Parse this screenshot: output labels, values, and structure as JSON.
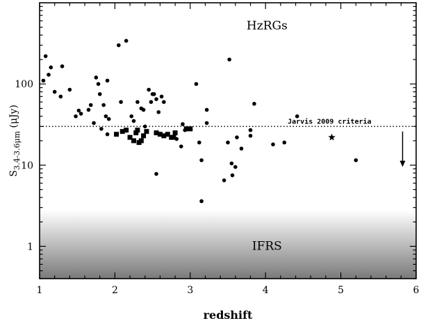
{
  "chart_data": {
    "type": "scatter",
    "title": "",
    "xlabel": "redshift",
    "ylabel": "S",
    "ylabel_sub": "3.4-3.6μm",
    "ylabel_unit": " (μJy)",
    "xlim": [
      1,
      6
    ],
    "ylim": [
      0.4,
      1000
    ],
    "yscale": "log",
    "x_ticks": [
      {
        "value": 1,
        "label": "1"
      },
      {
        "value": 2,
        "label": "2"
      },
      {
        "value": 3,
        "label": "3"
      },
      {
        "value": 4,
        "label": "4"
      },
      {
        "value": 5,
        "label": "5"
      },
      {
        "value": 6,
        "label": "6"
      }
    ],
    "y_ticks": [
      {
        "value": 1,
        "label": "1"
      },
      {
        "value": 10,
        "label": "10"
      },
      {
        "value": 100,
        "label": "100"
      }
    ],
    "annotations": {
      "hzrgs": "HzRGs",
      "ifrs": "IFRS",
      "criteria": "Jarvis 2009 criteria"
    },
    "criteria_flux": 30,
    "ifrs_region_max_flux": 2.8,
    "arrow": {
      "x": 5.82,
      "from": 26,
      "to": 9.5
    },
    "series": [
      {
        "marker": "circle",
        "points": [
          [
            1.05,
            110
          ],
          [
            1.08,
            220
          ],
          [
            1.12,
            130
          ],
          [
            1.15,
            160
          ],
          [
            1.2,
            80
          ],
          [
            1.28,
            70
          ],
          [
            1.3,
            165
          ],
          [
            1.4,
            85
          ],
          [
            1.48,
            40
          ],
          [
            1.52,
            47
          ],
          [
            1.55,
            43
          ],
          [
            1.65,
            48
          ],
          [
            1.68,
            55
          ],
          [
            1.72,
            33
          ],
          [
            1.75,
            120
          ],
          [
            1.78,
            100
          ],
          [
            1.8,
            75
          ],
          [
            1.82,
            28
          ],
          [
            1.85,
            55
          ],
          [
            1.88,
            40
          ],
          [
            1.9,
            24
          ],
          [
            1.9,
            110
          ],
          [
            1.92,
            37
          ],
          [
            2.05,
            300
          ],
          [
            2.08,
            60
          ],
          [
            2.15,
            340
          ],
          [
            2.22,
            40
          ],
          [
            2.25,
            35
          ],
          [
            2.3,
            60
          ],
          [
            2.35,
            50
          ],
          [
            2.38,
            48
          ],
          [
            2.4,
            30
          ],
          [
            2.45,
            85
          ],
          [
            2.48,
            60
          ],
          [
            2.5,
            75
          ],
          [
            2.52,
            75
          ],
          [
            2.55,
            65
          ],
          [
            2.58,
            45
          ],
          [
            2.62,
            70
          ],
          [
            2.65,
            60
          ],
          [
            2.55,
            7.8
          ],
          [
            2.82,
            21
          ],
          [
            2.88,
            17
          ],
          [
            2.9,
            32
          ],
          [
            2.93,
            27
          ],
          [
            3.08,
            100
          ],
          [
            3.12,
            19
          ],
          [
            3.15,
            11.5
          ],
          [
            3.15,
            3.6
          ],
          [
            3.22,
            48
          ],
          [
            3.22,
            33
          ],
          [
            3.45,
            6.5
          ],
          [
            3.5,
            19
          ],
          [
            3.52,
            200
          ],
          [
            3.55,
            10.5
          ],
          [
            3.56,
            7.5
          ],
          [
            3.6,
            9.5
          ],
          [
            3.62,
            22
          ],
          [
            3.68,
            16
          ],
          [
            3.8,
            27
          ],
          [
            3.8,
            23
          ],
          [
            3.85,
            57
          ],
          [
            4.1,
            18
          ],
          [
            4.25,
            19
          ],
          [
            4.42,
            40
          ],
          [
            5.2,
            11.5
          ]
        ]
      },
      {
        "marker": "square",
        "points": [
          [
            2.02,
            24
          ],
          [
            2.1,
            26
          ],
          [
            2.15,
            27
          ],
          [
            2.2,
            22
          ],
          [
            2.25,
            20
          ],
          [
            2.28,
            25
          ],
          [
            2.3,
            27
          ],
          [
            2.32,
            19
          ],
          [
            2.35,
            20
          ],
          [
            2.38,
            23
          ],
          [
            2.42,
            26
          ],
          [
            2.55,
            25
          ],
          [
            2.6,
            24
          ],
          [
            2.65,
            23
          ],
          [
            2.7,
            24
          ],
          [
            2.75,
            22
          ],
          [
            2.78,
            22
          ],
          [
            2.8,
            25
          ],
          [
            2.95,
            28
          ],
          [
            3.0,
            28
          ]
        ]
      },
      {
        "marker": "star",
        "points": [
          [
            4.88,
            22
          ]
        ]
      }
    ]
  }
}
